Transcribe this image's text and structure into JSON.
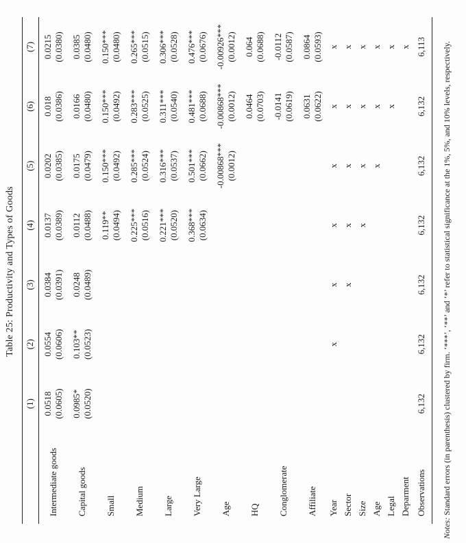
{
  "colors": {
    "background": "#fdfdfd",
    "text": "#1b1b1b",
    "rule": "#222222"
  },
  "title": "Table 25: Productivity and Types of Goods",
  "table": {
    "corner_label": "",
    "column_headers": [
      "(1)",
      "(2)",
      "(3)",
      "(4)",
      "(5)",
      "(6)",
      "(7)"
    ],
    "rows": [
      {
        "label": "Intermediate goods",
        "type": "coef",
        "cells": [
          {
            "coef": "0.0518",
            "se": "(0.0605)"
          },
          {
            "coef": "0.0554",
            "se": "(0.0606)"
          },
          {
            "coef": "0.0384",
            "se": "(0.0391)"
          },
          {
            "coef": "0.0137",
            "se": "(0.0389)"
          },
          {
            "coef": "0.0202",
            "se": "(0.0385)"
          },
          {
            "coef": "0.018",
            "se": "(0.0386)"
          },
          {
            "coef": "0.0215",
            "se": "(0.0380)"
          }
        ]
      },
      {
        "label": "Capital goods",
        "type": "coef",
        "cells": [
          {
            "coef": "0.0985*",
            "se": "(0.0520)"
          },
          {
            "coef": "0.103**",
            "se": "(0.0523)"
          },
          {
            "coef": "0.0248",
            "se": "(0.0489)"
          },
          {
            "coef": "0.0112",
            "se": "(0.0488)"
          },
          {
            "coef": "0.0175",
            "se": "(0.0479)"
          },
          {
            "coef": "0.0166",
            "se": "(0.0480)"
          },
          {
            "coef": "0.0385",
            "se": "(0.0480)"
          }
        ]
      },
      {
        "label": "Small",
        "type": "coef",
        "cells": [
          null,
          null,
          null,
          {
            "coef": "0.119**",
            "se": "(0.0494)"
          },
          {
            "coef": "0.150***",
            "se": "(0.0492)"
          },
          {
            "coef": "0.150***",
            "se": "(0.0492)"
          },
          {
            "coef": "0.150***",
            "se": "(0.0480)"
          }
        ]
      },
      {
        "label": "Medium",
        "type": "coef",
        "cells": [
          null,
          null,
          null,
          {
            "coef": "0.225***",
            "se": "(0.0516)"
          },
          {
            "coef": "0.285***",
            "se": "(0.0524)"
          },
          {
            "coef": "0.283***",
            "se": "(0.0525)"
          },
          {
            "coef": "0.265***",
            "se": "(0.0515)"
          }
        ]
      },
      {
        "label": "Large",
        "type": "coef",
        "cells": [
          null,
          null,
          null,
          {
            "coef": "0.221***",
            "se": "(0.0520)"
          },
          {
            "coef": "0.316***",
            "se": "(0.0537)"
          },
          {
            "coef": "0.311***",
            "se": "(0.0540)"
          },
          {
            "coef": "0.306***",
            "se": "(0.0528)"
          }
        ]
      },
      {
        "label": "Very Large",
        "type": "coef",
        "cells": [
          null,
          null,
          null,
          {
            "coef": "0.368***",
            "se": "(0.0634)"
          },
          {
            "coef": "0.501***",
            "se": "(0.0662)"
          },
          {
            "coef": "0.481***",
            "se": "(0.0688)"
          },
          {
            "coef": "0.476***",
            "se": "(0.0676)"
          }
        ]
      },
      {
        "label": "Age",
        "type": "coef",
        "cells": [
          null,
          null,
          null,
          null,
          {
            "coef": "-0.00868***",
            "se": "(0.0012)"
          },
          {
            "coef": "-0.00868***",
            "se": "(0.0012)"
          },
          {
            "coef": "-0.00926***",
            "se": "(0.0012)"
          }
        ]
      },
      {
        "label": "HQ",
        "type": "coef",
        "cells": [
          null,
          null,
          null,
          null,
          null,
          {
            "coef": "0.0464",
            "se": "(0.0703)"
          },
          {
            "coef": "0.064",
            "se": "(0.0688)"
          }
        ]
      },
      {
        "label": "Conglomerate",
        "type": "coef",
        "cells": [
          null,
          null,
          null,
          null,
          null,
          {
            "coef": "-0.0141",
            "se": "(0.0619)"
          },
          {
            "coef": "-0.0112",
            "se": "(0.0587)"
          }
        ]
      },
      {
        "label": "Affiliate",
        "type": "coef",
        "cells": [
          null,
          null,
          null,
          null,
          null,
          {
            "coef": "0.0631",
            "se": "(0.0622)"
          },
          {
            "coef": "0.0864",
            "se": "(0.0593)"
          }
        ]
      },
      {
        "label": "Year",
        "type": "control",
        "cells": [
          "",
          "x",
          "x",
          "x",
          "x",
          "x",
          "x"
        ]
      },
      {
        "label": "Sector",
        "type": "control",
        "cells": [
          "",
          "",
          "x",
          "x",
          "x",
          "x",
          "x"
        ]
      },
      {
        "label": "Size",
        "type": "control",
        "cells": [
          "",
          "",
          "",
          "x",
          "x",
          "x",
          "x"
        ]
      },
      {
        "label": "Age",
        "type": "control",
        "cells": [
          "",
          "",
          "",
          "",
          "x",
          "x",
          "x"
        ]
      },
      {
        "label": "Legal",
        "type": "control",
        "cells": [
          "",
          "",
          "",
          "",
          "",
          "x",
          "x"
        ]
      },
      {
        "label": "Deparment",
        "type": "control",
        "cells": [
          "",
          "",
          "",
          "",
          "",
          "",
          "x"
        ]
      },
      {
        "label": "Observations",
        "type": "obs",
        "cells": [
          "6,132",
          "6,132",
          "6,132",
          "6,132",
          "6,132",
          "6,132",
          "6,113"
        ]
      }
    ]
  },
  "notes": {
    "label": "Notes:",
    "text": " Standard errors (in parenthesis) clustered by firm. ‘***’, ‘**’ and ‘*’ refer to statistical significance at the 1%, 5%, and 10% levels, respectively."
  }
}
